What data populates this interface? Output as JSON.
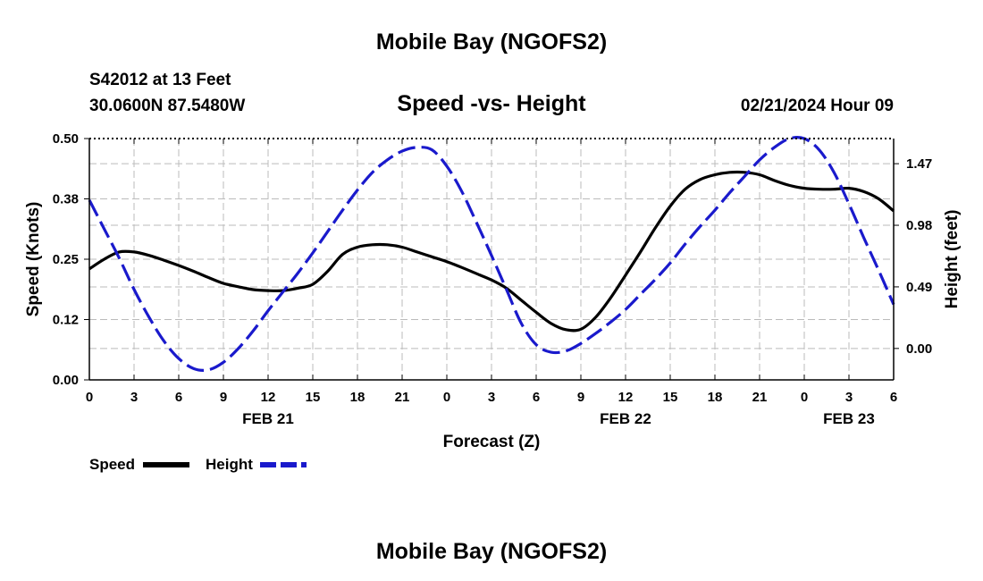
{
  "header": {
    "title": "Mobile Bay (NGOFS2)",
    "station": "S42012 at 13 Feet",
    "coords": "30.0600N  87.5480W",
    "subtitle": "Speed -vs- Height",
    "datetime": "02/21/2024 Hour 09"
  },
  "footer": {
    "title": "Mobile Bay (NGOFS2)"
  },
  "legend": {
    "speed_label": "Speed",
    "height_label": "Height"
  },
  "colors": {
    "speed": "#000000",
    "height": "#1a1acc",
    "grid": "#bbbbbb"
  },
  "chart_data": {
    "type": "line",
    "xlabel": "Forecast (Z)",
    "ylabel": "Speed (Knots)",
    "y2label": "Height (feet)",
    "x_tick_labels": [
      "0",
      "3",
      "6",
      "9",
      "12",
      "15",
      "18",
      "21",
      "0",
      "3",
      "6",
      "9",
      "12",
      "15",
      "18",
      "21",
      "0",
      "3",
      "6"
    ],
    "date_labels": [
      {
        "label": "FEB 21",
        "hours_from_start": 12
      },
      {
        "label": "FEB 22",
        "hours_from_start": 36
      },
      {
        "label": "FEB 23",
        "hours_from_start": 51
      }
    ],
    "xlim": [
      0,
      54
    ],
    "ylim": [
      0,
      0.5
    ],
    "y_ticks": [
      "0.00",
      "0.12",
      "0.25",
      "0.38",
      "0.50"
    ],
    "y2lim": [
      -0.25,
      1.67
    ],
    "y2_ticks": [
      "0.00",
      "0.49",
      "0.98",
      "1.47"
    ],
    "grid": true,
    "series": [
      {
        "name": "Speed",
        "axis": "left",
        "style": "solid",
        "x": [
          0,
          1,
          2,
          3,
          4,
          5,
          6,
          7,
          8,
          9,
          10,
          11,
          12,
          13,
          14,
          15,
          16,
          17,
          18,
          19,
          20,
          21,
          22,
          23,
          24,
          25,
          26,
          27,
          28,
          29,
          30,
          31,
          32,
          33,
          34,
          35,
          36,
          37,
          38,
          39,
          40,
          41,
          42,
          43,
          44,
          45,
          46,
          47,
          48,
          49,
          50,
          51,
          52,
          53,
          54
        ],
        "values": [
          0.23,
          0.25,
          0.265,
          0.265,
          0.258,
          0.248,
          0.237,
          0.225,
          0.212,
          0.2,
          0.193,
          0.187,
          0.185,
          0.185,
          0.19,
          0.198,
          0.225,
          0.26,
          0.275,
          0.28,
          0.28,
          0.275,
          0.265,
          0.255,
          0.245,
          0.233,
          0.22,
          0.207,
          0.19,
          0.165,
          0.14,
          0.117,
          0.104,
          0.105,
          0.13,
          0.17,
          0.217,
          0.265,
          0.315,
          0.36,
          0.395,
          0.415,
          0.425,
          0.43,
          0.43,
          0.425,
          0.413,
          0.403,
          0.397,
          0.395,
          0.395,
          0.397,
          0.39,
          0.375,
          0.35
        ]
      },
      {
        "name": "Height",
        "axis": "right",
        "style": "dashed",
        "x": [
          0,
          1,
          2,
          3,
          4,
          5,
          6,
          7,
          8,
          9,
          10,
          11,
          12,
          13,
          14,
          15,
          16,
          17,
          18,
          19,
          20,
          21,
          22,
          23,
          24,
          25,
          26,
          27,
          28,
          29,
          30,
          31,
          32,
          33,
          34,
          35,
          36,
          37,
          38,
          39,
          40,
          41,
          42,
          43,
          44,
          45,
          46,
          47,
          48,
          49,
          50,
          51,
          52,
          53,
          54
        ],
        "values": [
          1.18,
          0.95,
          0.72,
          0.47,
          0.25,
          0.06,
          -0.08,
          -0.16,
          -0.17,
          -0.11,
          0.0,
          0.14,
          0.3,
          0.45,
          0.6,
          0.76,
          0.93,
          1.1,
          1.26,
          1.4,
          1.5,
          1.57,
          1.6,
          1.58,
          1.45,
          1.25,
          1.0,
          0.74,
          0.47,
          0.2,
          0.03,
          -0.03,
          -0.02,
          0.04,
          0.12,
          0.21,
          0.31,
          0.43,
          0.55,
          0.68,
          0.83,
          0.97,
          1.1,
          1.24,
          1.37,
          1.5,
          1.6,
          1.67,
          1.67,
          1.58,
          1.4,
          1.15,
          0.88,
          0.62,
          0.35
        ]
      }
    ]
  }
}
